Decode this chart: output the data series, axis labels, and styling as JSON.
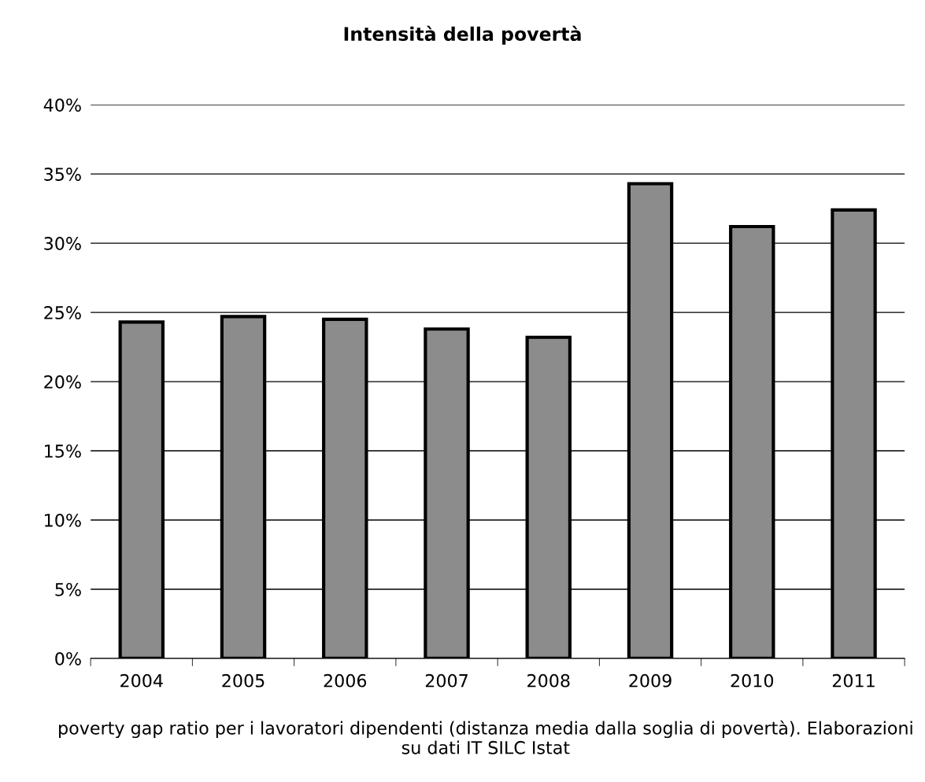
{
  "chart_data": {
    "type": "bar",
    "title": "Intensità della povertà",
    "xlabel": "poverty gap ratio per i lavoratori dipendenti (distanza media dalla soglia di povertà). Elaborazioni su dati IT SILC Istat",
    "categories": [
      "2004",
      "2005",
      "2006",
      "2007",
      "2008",
      "2009",
      "2010",
      "2011"
    ],
    "values": [
      24.3,
      24.7,
      24.5,
      23.8,
      23.2,
      34.3,
      31.2,
      32.4
    ],
    "color": "#8c8c8c",
    "ylim": [
      0,
      40
    ],
    "yticks": [
      {
        "value": 0,
        "label": "0%"
      },
      {
        "value": 5,
        "label": "5%"
      },
      {
        "value": 10,
        "label": "10%"
      },
      {
        "value": 15,
        "label": "15%"
      },
      {
        "value": 20,
        "label": "20%"
      },
      {
        "value": 25,
        "label": "25%"
      },
      {
        "value": 30,
        "label": "30%"
      },
      {
        "value": 35,
        "label": "35%"
      },
      {
        "value": 40,
        "label": "40%"
      }
    ],
    "grid": "y"
  }
}
